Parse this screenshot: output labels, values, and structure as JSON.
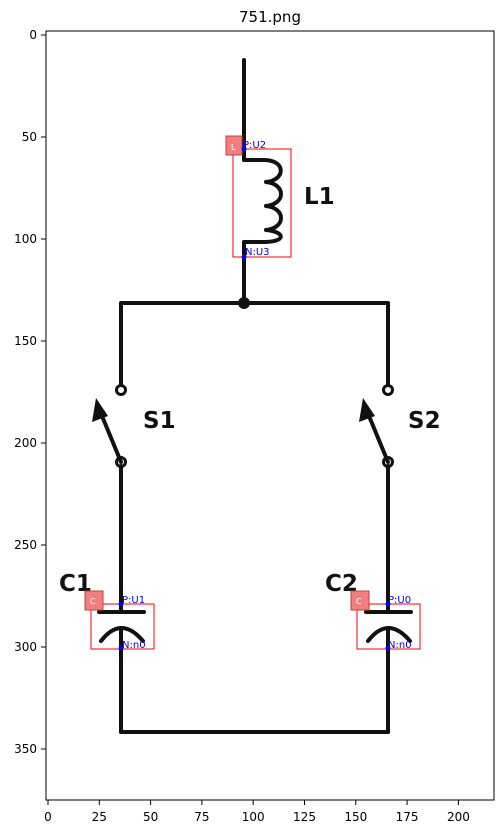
{
  "title": "751.png",
  "x_ticks": [
    "0",
    "25",
    "50",
    "75",
    "100",
    "125",
    "150",
    "175",
    "200"
  ],
  "y_ticks": [
    "0",
    "50",
    "100",
    "150",
    "200",
    "250",
    "300",
    "350"
  ],
  "components": {
    "inductor": {
      "label": "L1",
      "tag": "L",
      "pos_node": "P:U2",
      "neg_node": "N:U3"
    },
    "switch1": {
      "label": "S1"
    },
    "switch2": {
      "label": "S2"
    },
    "cap1": {
      "label": "C1",
      "tag": "C",
      "pos_node": "P:U1",
      "neg_node": "N:n0"
    },
    "cap2": {
      "label": "C2",
      "tag": "C",
      "pos_node": "P:U0",
      "neg_node": "N:n0"
    }
  },
  "colors": {
    "box": "#ff0000",
    "node_label": "#0000ff",
    "tag_fill": "#f08080"
  }
}
